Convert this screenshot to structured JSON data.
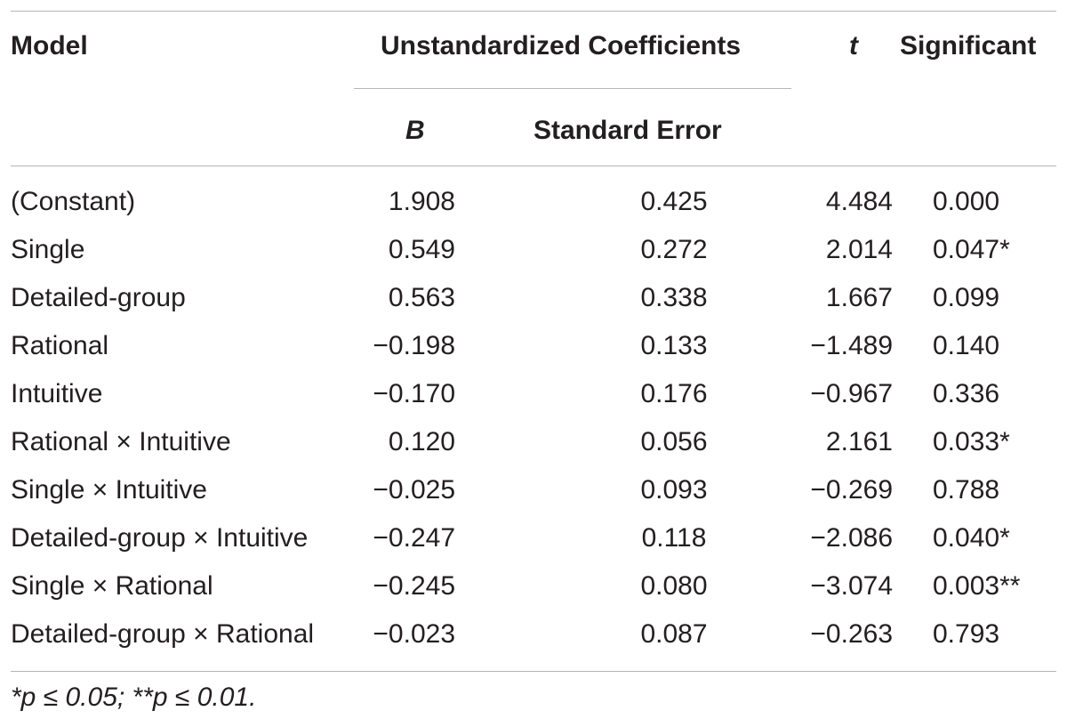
{
  "table": {
    "headers": {
      "model": "Model",
      "unstandardized": "Unstandardized Coefficients",
      "t": "t",
      "significant": "Significant",
      "b": "B",
      "standard_error": "Standard Error"
    },
    "rows": [
      {
        "model": "(Constant)",
        "b": "1.908",
        "se": "0.425",
        "t": "4.484",
        "sig": "0.000"
      },
      {
        "model": "Single",
        "b": "0.549",
        "se": "0.272",
        "t": "2.014",
        "sig": "0.047*"
      },
      {
        "model": "Detailed-group",
        "b": "0.563",
        "se": "0.338",
        "t": "1.667",
        "sig": "0.099"
      },
      {
        "model": "Rational",
        "b": "−0.198",
        "se": "0.133",
        "t": "−1.489",
        "sig": "0.140"
      },
      {
        "model": "Intuitive",
        "b": "−0.170",
        "se": "0.176",
        "t": "−0.967",
        "sig": "0.336"
      },
      {
        "model": "Rational × Intuitive",
        "b": "0.120",
        "se": "0.056",
        "t": "2.161",
        "sig": "0.033*"
      },
      {
        "model": "Single × Intuitive",
        "b": "−0.025",
        "se": "0.093",
        "t": "−0.269",
        "sig": "0.788"
      },
      {
        "model": "Detailed-group × Intuitive",
        "b": "−0.247",
        "se": "0.118",
        "t": "−2.086",
        "sig": "0.040*"
      },
      {
        "model": "Single × Rational",
        "b": "−0.245",
        "se": "0.080",
        "t": "−3.074",
        "sig": "0.003**"
      },
      {
        "model": "Detailed-group × Rational",
        "b": "−0.023",
        "se": "0.087",
        "t": "−0.263",
        "sig": "0.793"
      }
    ],
    "footnote": "*p ≤ 0.05; **p ≤ 0.01."
  }
}
